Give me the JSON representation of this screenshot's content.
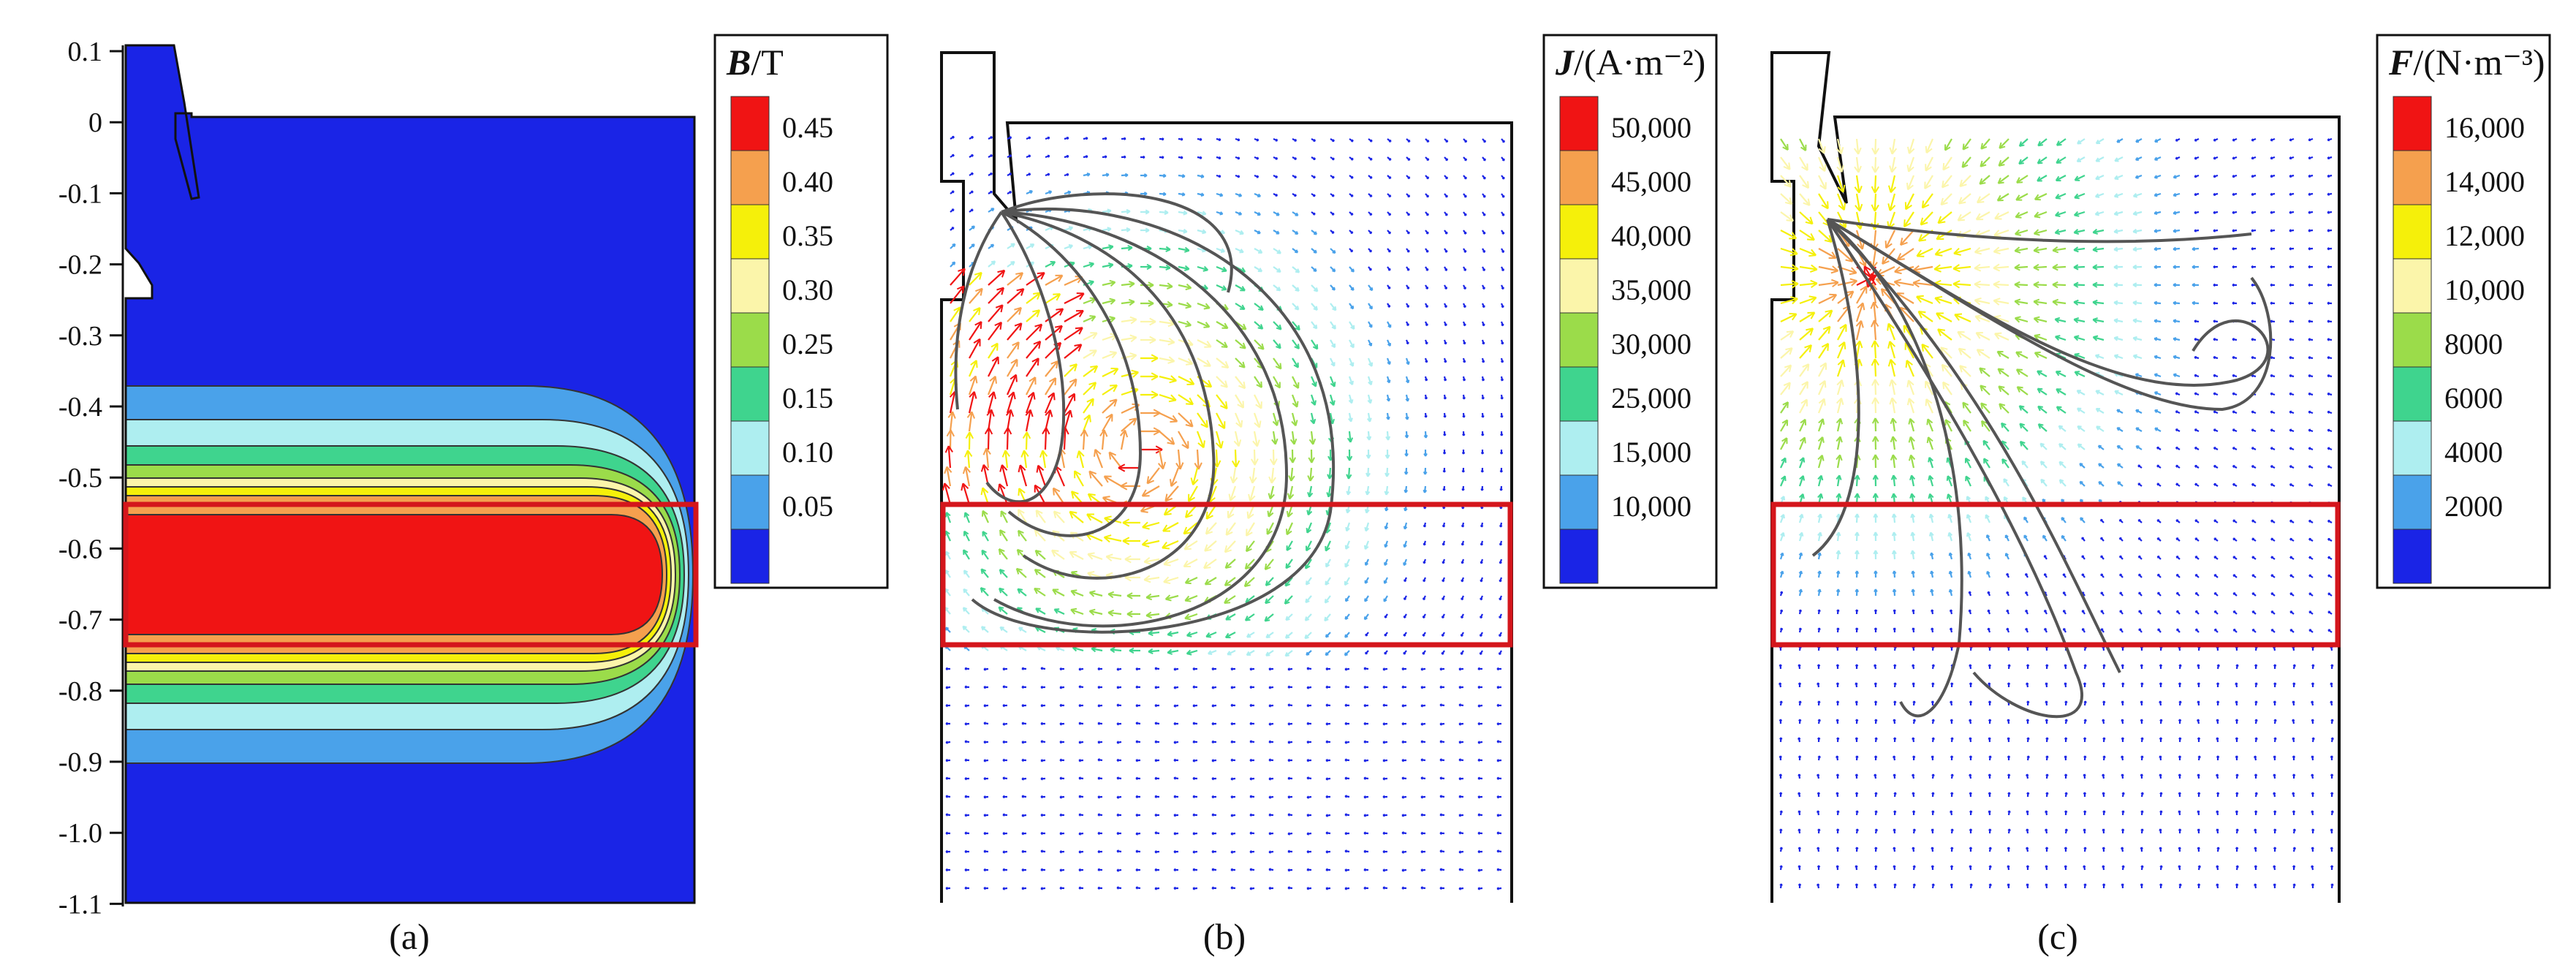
{
  "palette": [
    "#1a24e6",
    "#4aa2ea",
    "#aeeef0",
    "#3fd48e",
    "#9bdc4a",
    "#fbf5aa",
    "#f5f00a",
    "#f5a04e",
    "#f01414"
  ],
  "axis": {
    "ticks": [
      "0.1",
      "0",
      "-0.1",
      "-0.2",
      "-0.3",
      "-0.4",
      "-0.5",
      "-0.6",
      "-0.7",
      "-0.8",
      "-0.9",
      "-1.0",
      "-1.1"
    ]
  },
  "panels": [
    {
      "caption": "(a)",
      "legend": {
        "title_bold": "B",
        "title_rest": "/T",
        "labels": [
          "0.45",
          "0.40",
          "0.35",
          "0.30",
          "0.25",
          "0.15",
          "0.10",
          "0.05"
        ]
      }
    },
    {
      "caption": "(b)",
      "legend": {
        "title_bold": "J",
        "title_rest": "/(A·m⁻²)",
        "labels": [
          "50,000",
          "45,000",
          "40,000",
          "35,000",
          "30,000",
          "25,000",
          "15,000",
          "10,000"
        ]
      }
    },
    {
      "caption": "(c)",
      "legend": {
        "title_bold": "F",
        "title_rest": "/(N·m⁻³)",
        "labels": [
          "16,000",
          "14,000",
          "12,000",
          "10,000",
          "8000",
          "6000",
          "4000",
          "2000"
        ]
      }
    }
  ]
}
